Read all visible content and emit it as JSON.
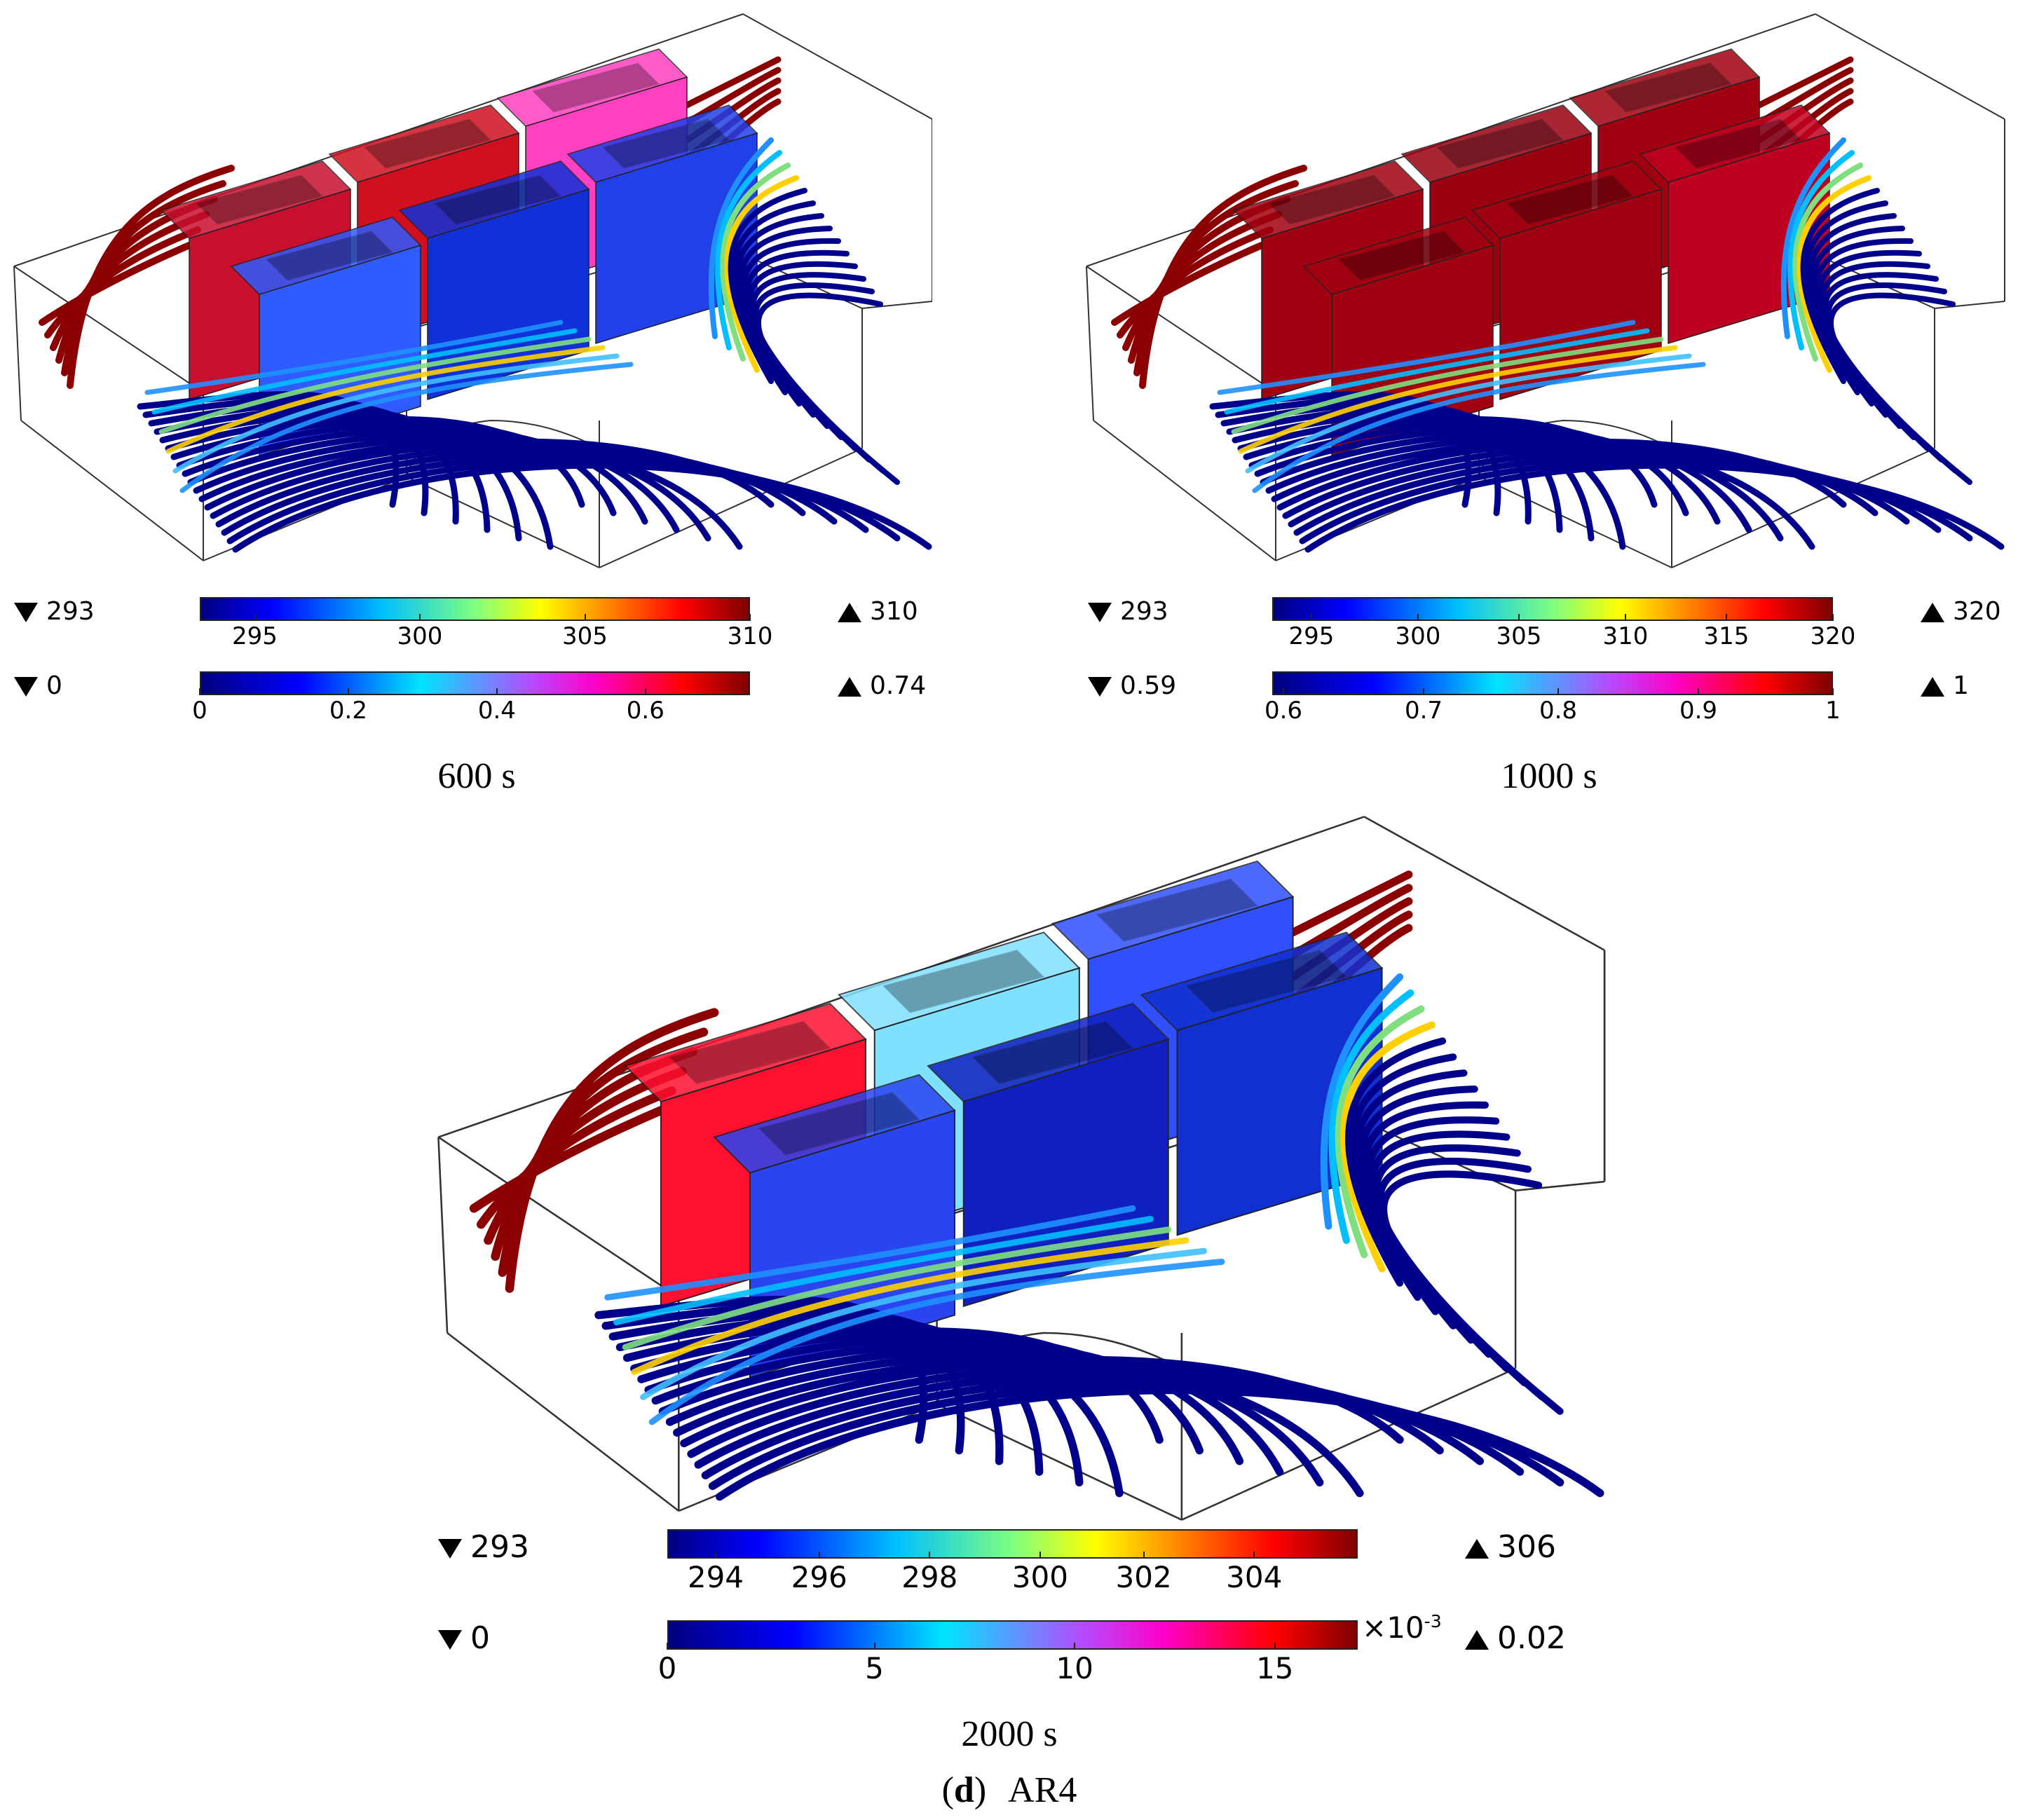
{
  "panels": [
    {
      "time_label": "600 s",
      "box_colors": [
        "#c8102e",
        "#d01020",
        "#ff40c0",
        "#2f5bff",
        "#1030d8",
        "#2040e8"
      ],
      "temp_legend": {
        "min_label": "293",
        "max_label": "310",
        "ticks": [
          "295",
          "300",
          "305",
          "310"
        ],
        "tick_fracs": [
          0.1,
          0.4,
          0.7,
          1.0
        ]
      },
      "frac_legend": {
        "min_label": "0",
        "max_label": "0.74",
        "ticks": [
          "0",
          "0.2",
          "0.4",
          "0.6"
        ],
        "tick_fracs": [
          0.0,
          0.27,
          0.54,
          0.81
        ]
      }
    },
    {
      "time_label": "1000 s",
      "box_colors": [
        "#a00010",
        "#9a0010",
        "#a00010",
        "#a00010",
        "#a00010",
        "#c00020"
      ],
      "temp_legend": {
        "min_label": "293",
        "max_label": "320",
        "ticks": [
          "295",
          "300",
          "305",
          "310",
          "315",
          "320"
        ],
        "tick_fracs": [
          0.07,
          0.26,
          0.44,
          0.63,
          0.81,
          1.0
        ]
      },
      "frac_legend": {
        "min_label": "0.59",
        "max_label": "1",
        "ticks": [
          "0.6",
          "0.7",
          "0.8",
          "0.9",
          "1"
        ],
        "tick_fracs": [
          0.02,
          0.27,
          0.51,
          0.76,
          1.0
        ]
      }
    },
    {
      "time_label": "2000 s",
      "box_colors": [
        "#ff1030",
        "#80e0ff",
        "#3050ff",
        "#2a44f0",
        "#1020c0",
        "#1030d0"
      ],
      "temp_legend": {
        "min_label": "293",
        "max_label": "306",
        "ticks": [
          "294",
          "296",
          "298",
          "300",
          "302",
          "304"
        ],
        "tick_fracs": [
          0.07,
          0.22,
          0.38,
          0.54,
          0.69,
          0.85
        ]
      },
      "frac_legend": {
        "min_label": "0",
        "max_label": "0.02",
        "multiplier": "×10",
        "exponent": "-3",
        "ticks": [
          "0",
          "5",
          "10",
          "15"
        ],
        "tick_fracs": [
          0.0,
          0.3,
          0.59,
          0.88
        ]
      }
    }
  ],
  "subfigure_label": "(d)",
  "subfigure_name": "AR4",
  "colors": {
    "frame": "#333333",
    "streamline_hot": "#8b0000",
    "streamline_cold": "#00008b"
  }
}
